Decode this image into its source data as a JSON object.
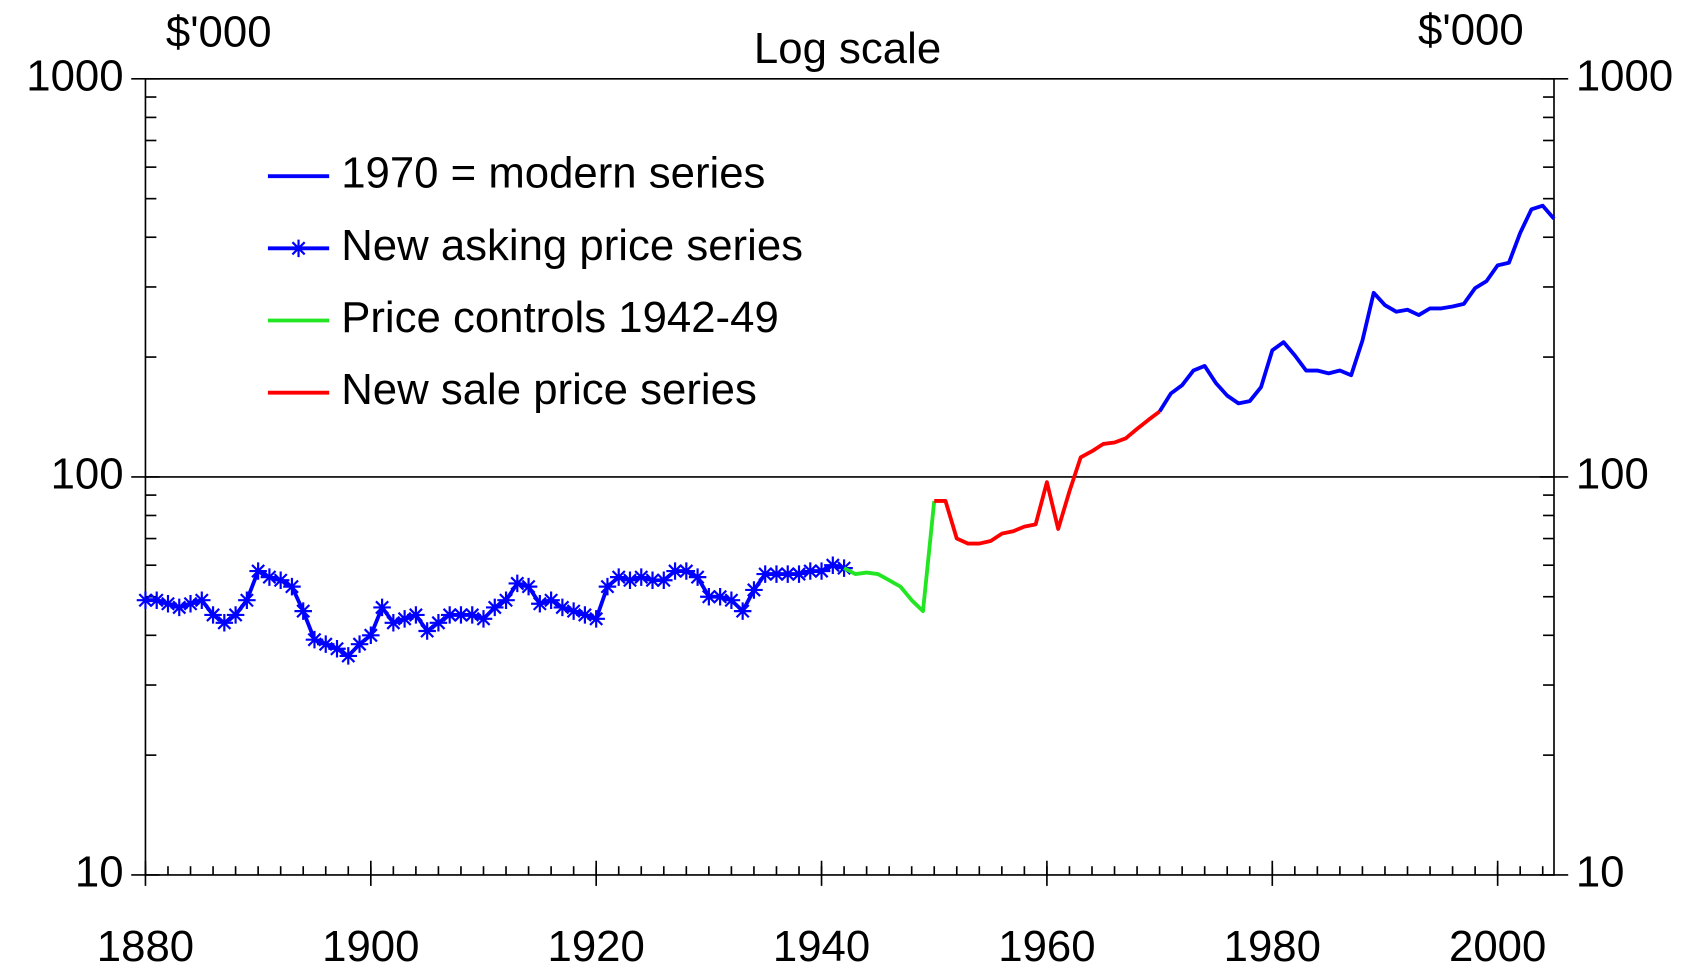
{
  "chart_data": {
    "type": "line",
    "subtitle": "Log scale",
    "ylabel": "$'000",
    "y2label": "$'000",
    "log_scale": true,
    "grid": true,
    "legend": "upper left",
    "xlim": [
      1880,
      2005
    ],
    "xticks": [
      1880,
      1900,
      1920,
      1940,
      1960,
      1980,
      2000
    ],
    "ylim": [
      10,
      1000
    ],
    "yticks": [
      10,
      100,
      1000
    ],
    "y2lim": [
      10,
      1000
    ],
    "y2ticks": [
      10,
      100,
      1000
    ],
    "series": [
      {
        "name": "1970 = modern series",
        "color": "#0000ff",
        "x": [
          1970,
          1971,
          1972,
          1973,
          1974,
          1975,
          1976,
          1977,
          1978,
          1979,
          1980,
          1981,
          1982,
          1983,
          1984,
          1985,
          1986,
          1987,
          1988,
          1989,
          1990,
          1991,
          1992,
          1993,
          1994,
          1995,
          1996,
          1997,
          1998,
          1999,
          2000,
          2001,
          2002,
          2003,
          2004,
          2005
        ],
        "values": [
          146,
          162,
          170,
          185,
          190,
          172,
          160,
          153,
          155,
          168,
          208,
          218,
          202,
          185,
          185,
          182,
          185,
          180,
          220,
          290,
          270,
          260,
          263,
          255,
          265,
          265,
          268,
          272,
          298,
          310,
          340,
          345,
          410,
          470,
          480,
          445
        ]
      },
      {
        "name": "New asking price series",
        "color": "#0000ff",
        "marker": "asterisk",
        "x": [
          1880,
          1881,
          1882,
          1883,
          1884,
          1885,
          1886,
          1887,
          1888,
          1889,
          1890,
          1891,
          1892,
          1893,
          1894,
          1895,
          1896,
          1897,
          1898,
          1899,
          1900,
          1901,
          1902,
          1903,
          1904,
          1905,
          1906,
          1907,
          1908,
          1909,
          1910,
          1911,
          1912,
          1913,
          1914,
          1915,
          1916,
          1917,
          1918,
          1919,
          1920,
          1921,
          1922,
          1923,
          1924,
          1925,
          1926,
          1927,
          1928,
          1929,
          1930,
          1931,
          1932,
          1933,
          1934,
          1935,
          1936,
          1937,
          1938,
          1939,
          1940,
          1941,
          1942
        ],
        "values": [
          49,
          49,
          48,
          47,
          48,
          49,
          45,
          43,
          45,
          49,
          58,
          56,
          55,
          53,
          46,
          39,
          38,
          37,
          35.5,
          38,
          40,
          47,
          43,
          44,
          45,
          41,
          43,
          45,
          45,
          45,
          44,
          47,
          49,
          54,
          53,
          48,
          49,
          47,
          46,
          45,
          44,
          53,
          56,
          55,
          56,
          55,
          55,
          58,
          58,
          56,
          50,
          50,
          49,
          46,
          52,
          57,
          57,
          57,
          57,
          58,
          58,
          60,
          59
        ]
      },
      {
        "name": "Price controls 1942-49",
        "color": "#22e622",
        "x": [
          1942,
          1943,
          1944,
          1945,
          1946,
          1947,
          1948,
          1949,
          1950
        ],
        "values": [
          59,
          57,
          57.5,
          57,
          55,
          53,
          49,
          46,
          87
        ]
      },
      {
        "name": "New sale price series",
        "color": "#ff0000",
        "x": [
          1950,
          1951,
          1952,
          1953,
          1954,
          1955,
          1956,
          1957,
          1958,
          1959,
          1960,
          1961,
          1962,
          1963,
          1964,
          1965,
          1966,
          1967,
          1968,
          1969,
          1970
        ],
        "values": [
          87,
          87,
          70,
          68,
          68,
          69,
          72,
          73,
          75,
          76,
          97,
          74,
          92,
          112,
          116,
          121,
          122,
          125,
          132,
          139,
          146
        ]
      }
    ]
  }
}
